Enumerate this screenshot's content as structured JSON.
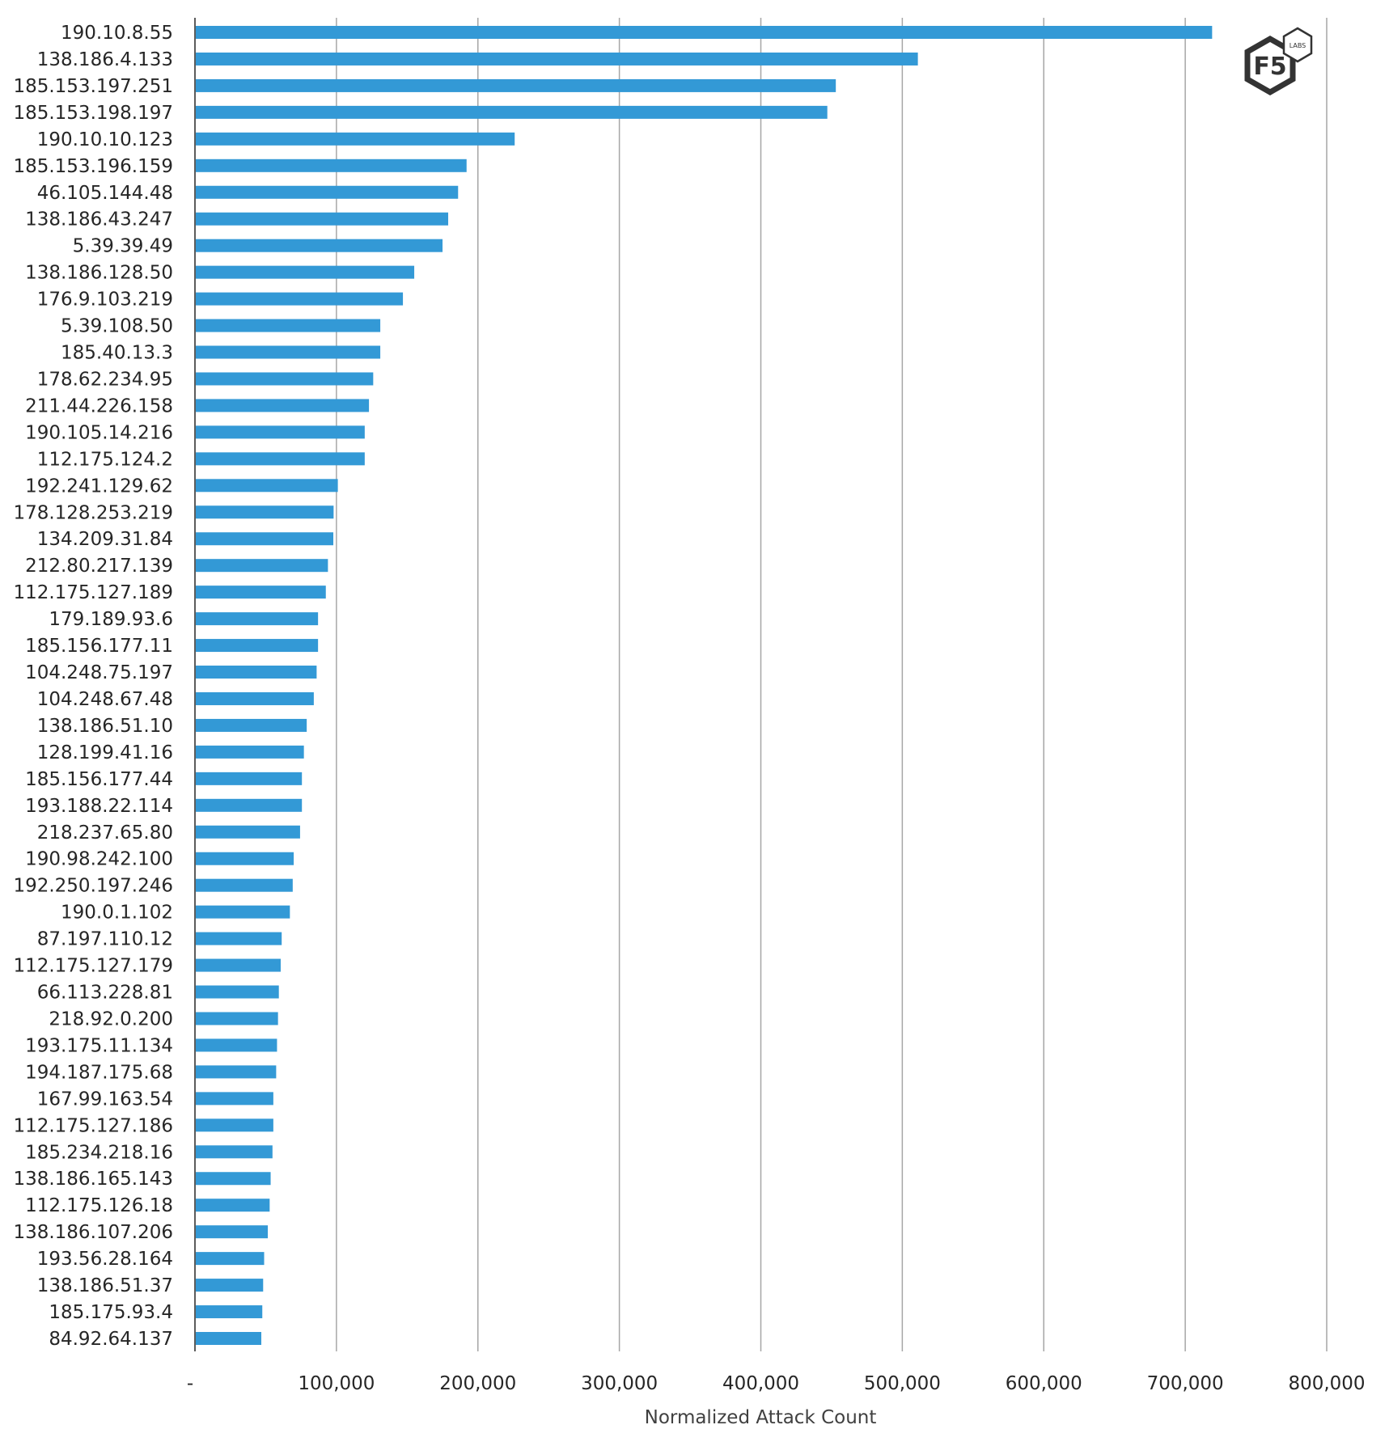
{
  "chart_data": {
    "type": "bar",
    "orientation": "horizontal",
    "title": "",
    "xlabel": "Normalized Attack Count",
    "ylabel": "",
    "xlim": [
      0,
      800000
    ],
    "x_ticks": [
      "-",
      "100,000",
      "200,000",
      "300,000",
      "400,000",
      "500,000",
      "600,000",
      "700,000",
      "800,000"
    ],
    "grid": "vertical",
    "bar_color": "#3399d6",
    "categories": [
      "190.10.8.55",
      "138.186.4.133",
      "185.153.197.251",
      "185.153.198.197",
      "190.10.10.123",
      "185.153.196.159",
      "46.105.144.48",
      "138.186.43.247",
      "5.39.39.49",
      "138.186.128.50",
      "176.9.103.219",
      "5.39.108.50",
      "185.40.13.3",
      "178.62.234.95",
      "211.44.226.158",
      "190.105.14.216",
      "112.175.124.2",
      "192.241.129.62",
      "178.128.253.219",
      "134.209.31.84",
      "212.80.217.139",
      "112.175.127.189",
      "179.189.93.6",
      "185.156.177.11",
      "104.248.75.197",
      "104.248.67.48",
      "138.186.51.10",
      "128.199.41.16",
      "185.156.177.44",
      "193.188.22.114",
      "218.237.65.80",
      "190.98.242.100",
      "192.250.197.246",
      "190.0.1.102",
      "87.197.110.12",
      "112.175.127.179",
      "66.113.228.81",
      "218.92.0.200",
      "193.175.11.134",
      "194.187.175.68",
      "167.99.163.54",
      "112.175.127.186",
      "185.234.218.16",
      "138.186.165.143",
      "112.175.126.18",
      "138.186.107.206",
      "193.56.28.164",
      "138.186.51.37",
      "185.175.93.4",
      "84.92.64.137"
    ],
    "values": [
      719000,
      511000,
      453000,
      447000,
      226000,
      192000,
      186000,
      179000,
      175000,
      155000,
      147000,
      131000,
      131000,
      126000,
      123000,
      120000,
      120000,
      101000,
      98000,
      97800,
      94000,
      92500,
      87000,
      87000,
      86000,
      84000,
      79000,
      77000,
      75600,
      75600,
      74300,
      69800,
      69100,
      67100,
      61300,
      60600,
      59300,
      58700,
      58000,
      57400,
      55400,
      55400,
      54800,
      53500,
      52800,
      51500,
      48900,
      48200,
      47600,
      46900
    ]
  },
  "logo": {
    "text": "F5",
    "badge": "LABS"
  }
}
